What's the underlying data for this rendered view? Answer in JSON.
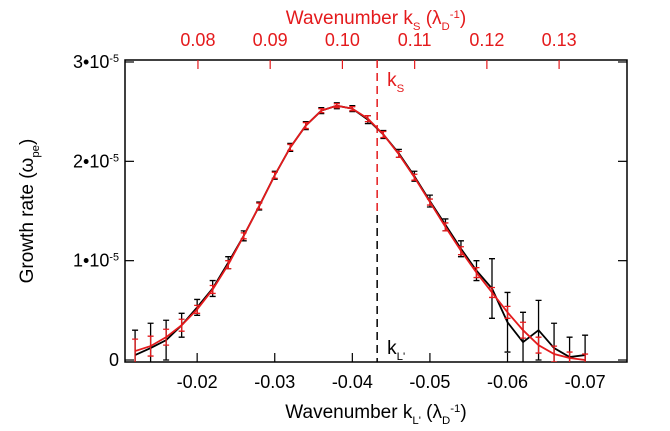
{
  "chart_data": {
    "type": "line",
    "x_label": [
      {
        "text": "Wavenumber k"
      },
      {
        "text": "L'",
        "shift": "sub"
      },
      {
        "text": " (λ"
      },
      {
        "text": "D",
        "shift": "sub"
      },
      {
        "text": "-1",
        "shift": "super"
      },
      {
        "text": ")"
      }
    ],
    "x2_label": [
      {
        "text": "Wavenumber k"
      },
      {
        "text": "S",
        "shift": "sub"
      },
      {
        "text": " (λ"
      },
      {
        "text": "D",
        "shift": "sub"
      },
      {
        "text": "-1",
        "shift": "super"
      },
      {
        "text": ")"
      }
    ],
    "y_label": [
      {
        "text": "Growth rate (ω"
      },
      {
        "text": "pe",
        "shift": "sub"
      },
      {
        "text": ")"
      }
    ],
    "x": [
      -0.012,
      -0.014,
      -0.016,
      -0.018,
      -0.02,
      -0.022,
      -0.024,
      -0.026,
      -0.028,
      -0.03,
      -0.032,
      -0.034,
      -0.036,
      -0.038,
      -0.04,
      -0.042,
      -0.044,
      -0.046,
      -0.048,
      -0.05,
      -0.052,
      -0.054,
      -0.056,
      -0.058,
      -0.06,
      -0.062,
      -0.064,
      -0.066,
      -0.068,
      -0.07
    ],
    "series": [
      {
        "name": "black",
        "color": "#000000",
        "values": [
          5e-07,
          1.2e-06,
          2e-06,
          3.5e-06,
          5.3e-06,
          7.2e-06,
          9.8e-06,
          1.25e-05,
          1.55e-05,
          1.86e-05,
          2.14e-05,
          2.36e-05,
          2.51e-05,
          2.56e-05,
          2.53e-05,
          2.42e-05,
          2.27e-05,
          2.08e-05,
          1.85e-05,
          1.6e-05,
          1.36e-05,
          1.12e-05,
          9e-06,
          7.2e-06,
          3.8e-06,
          1.8e-06,
          3e-06,
          1.2e-06,
          3e-07,
          5e-07
        ],
        "errors": [
          2.5e-06,
          2.5e-06,
          2e-06,
          1.2e-06,
          8e-07,
          8e-07,
          6e-07,
          5e-07,
          4e-07,
          4e-07,
          4e-07,
          4e-07,
          3e-07,
          3e-07,
          3e-07,
          4e-07,
          4e-07,
          4e-07,
          5e-07,
          6e-07,
          6e-07,
          8e-07,
          1e-06,
          3e-06,
          3e-06,
          3e-06,
          3e-06,
          2.5e-06,
          2e-06,
          2e-06
        ]
      },
      {
        "name": "red",
        "color": "#e41a1c",
        "values": [
          9e-07,
          1.4e-06,
          2.3e-06,
          3.5e-06,
          5.1e-06,
          7.1e-06,
          9.6e-06,
          1.25e-05,
          1.55e-05,
          1.86e-05,
          2.14e-05,
          2.36e-05,
          2.51e-05,
          2.56e-05,
          2.53e-05,
          2.43e-05,
          2.27e-05,
          2.07e-05,
          1.84e-05,
          1.59e-05,
          1.34e-05,
          1.1e-05,
          8.8e-06,
          6.8e-06,
          4.8e-06,
          3e-06,
          1.5e-06,
          6e-07,
          2e-07,
          0
        ],
        "errors": [
          1.2e-06,
          1e-06,
          8e-07,
          6e-07,
          4e-07,
          4e-07,
          4e-07,
          3e-07,
          3e-07,
          3e-07,
          3e-07,
          3e-07,
          2e-07,
          2e-07,
          2e-07,
          3e-07,
          3e-07,
          3e-07,
          3e-07,
          3e-07,
          4e-07,
          4e-07,
          5e-07,
          5e-07,
          6e-07,
          8e-07,
          8e-07,
          8e-07,
          6e-07,
          6e-07
        ]
      }
    ],
    "xlim": [
      -0.0107,
      -0.0754
    ],
    "xticks": [
      -0.02,
      -0.03,
      -0.04,
      -0.05,
      -0.06,
      -0.07
    ],
    "x2lim": [
      0.0699,
      0.1394
    ],
    "x2ticks": [
      0.08,
      0.09,
      {
        "value": 0.1,
        "label": "0.10"
      },
      0.11,
      0.12,
      0.13
    ],
    "x2_color": "#e41a1c",
    "ylim": [
      -2e-07,
      3.02e-05
    ],
    "yticks": [
      0,
      {
        "value": 1e-05,
        "label": "1•10",
        "exponent": "-5"
      },
      {
        "value": 2e-05,
        "label": "2•10",
        "exponent": "-5"
      },
      {
        "value": 3e-05,
        "label": "3•10",
        "exponent": "-5"
      }
    ],
    "vline": {
      "x": -0.0432,
      "top_label": [
        {
          "text": "k"
        },
        {
          "text": "S",
          "shift": "sub"
        }
      ],
      "bottom_label": [
        {
          "text": "k"
        },
        {
          "text": "L'",
          "shift": "sub"
        }
      ]
    },
    "grid": false
  }
}
